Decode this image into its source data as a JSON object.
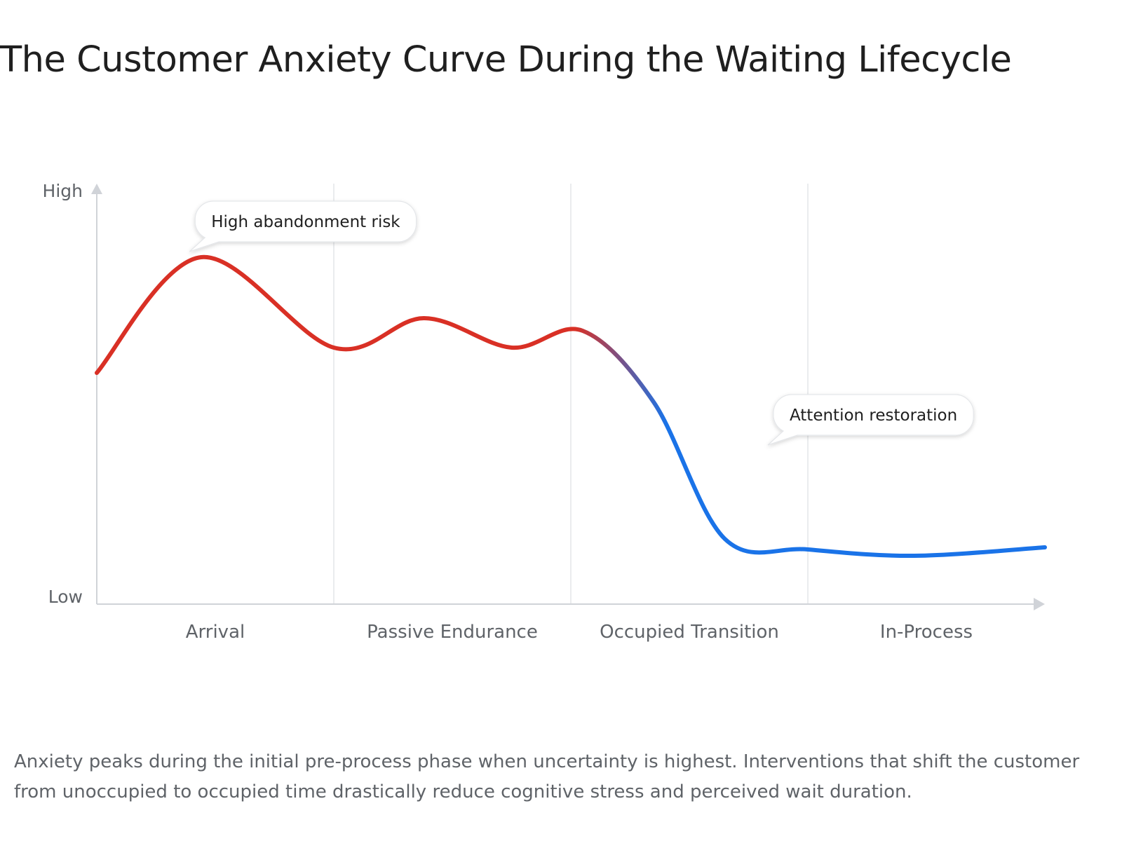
{
  "title": "The Customer Anxiety Curve During the Waiting Lifecycle",
  "caption": "Anxiety peaks during the initial pre-process phase when uncertainty is highest. Interventions that shift the customer from unoccupied to occupied time drastically reduce cognitive stress and perceived wait duration.",
  "colors": {
    "high_anxiety": "#d93025",
    "low_anxiety": "#1a73e8",
    "axis": "#d0d3d8",
    "divider": "#e3e5e8",
    "label": "#5f6368",
    "text": "#1f1f1f"
  },
  "chart_data": {
    "type": "line",
    "y_axis": {
      "high_label": "High",
      "low_label": "Low",
      "ylim": [
        0,
        1
      ]
    },
    "x_axis": {
      "xlim": [
        0,
        4
      ],
      "categories": [
        "Arrival",
        "Passive Endurance",
        "Occupied Transition",
        "In-Process"
      ]
    },
    "grid": {
      "phase_dividers": [
        1,
        2,
        3
      ]
    },
    "series": [
      {
        "gradient": [
          "#d93025",
          "#1a73e8"
        ],
        "points": [
          [
            0.0,
            0.55
          ],
          [
            0.44,
            0.825
          ],
          [
            1.0,
            0.61
          ],
          [
            1.38,
            0.68
          ],
          [
            1.75,
            0.61
          ],
          [
            2.05,
            0.65
          ],
          [
            2.35,
            0.48
          ],
          [
            2.65,
            0.155
          ],
          [
            3.0,
            0.13
          ],
          [
            3.45,
            0.115
          ],
          [
            4.0,
            0.135
          ]
        ]
      }
    ],
    "annotations": [
      {
        "text": "High abandonment risk",
        "x": 0.48,
        "y": 0.91
      },
      {
        "text": "Attention restoration",
        "x": 2.92,
        "y": 0.45
      }
    ]
  }
}
